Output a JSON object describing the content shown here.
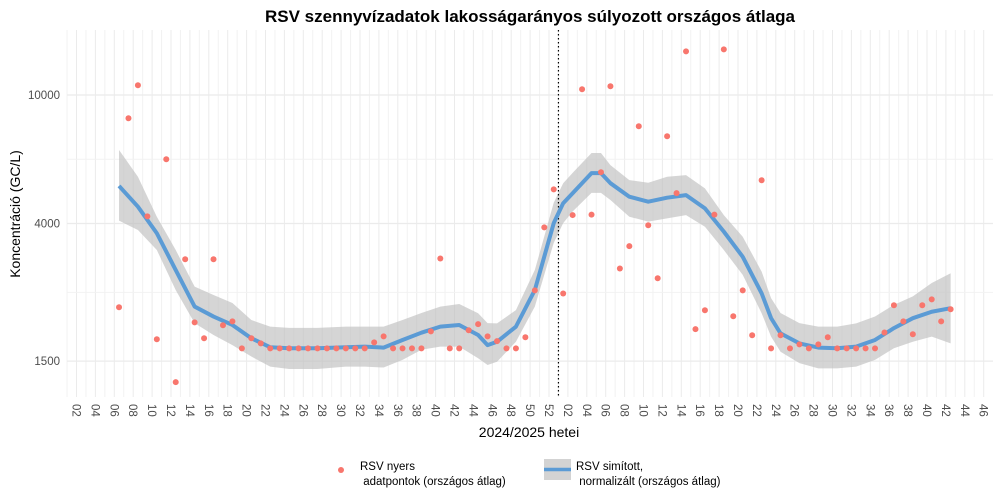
{
  "chart_data": {
    "type": "scatter",
    "title": "RSV szennyvízadatok lakosságarányos súlyozott országos átlaga",
    "xlabel": "2024/2025 hetei",
    "ylabel": "Koncentráció (GC/L)",
    "y_scale": "log",
    "y_ticks": [
      1500,
      4000,
      10000
    ],
    "ylim": [
      1160,
      15900
    ],
    "xlim": [
      "2024-W01",
      "2025-W47"
    ],
    "x_tick_labels_2024": [
      "02",
      "04",
      "06",
      "08",
      "10",
      "12",
      "14",
      "16",
      "18",
      "20",
      "22",
      "24",
      "26",
      "28",
      "30",
      "32",
      "34",
      "36",
      "38",
      "40",
      "42",
      "44",
      "46",
      "48",
      "50",
      "52"
    ],
    "x_tick_labels_2025": [
      "02",
      "04",
      "06",
      "08",
      "10",
      "12",
      "14",
      "16",
      "18",
      "20",
      "22",
      "24",
      "26",
      "28",
      "30",
      "32",
      "34",
      "36",
      "38",
      "40",
      "42",
      "44",
      "46"
    ],
    "vline_at": "2025-W01",
    "grid": true,
    "legend_position": "bottom",
    "colors": {
      "points": "#F8766D",
      "smooth": "#5B9BD5",
      "band": "#BEBEBE"
    },
    "legend": [
      {
        "label_line1": "RSV nyers",
        "label_line2": " adatpontok (országos átlag)"
      },
      {
        "label_line1": "RSV simított,",
        "label_line2": " normalizált (országos átlag)"
      }
    ],
    "points": [
      [
        "2024-W06",
        2203
      ],
      [
        "2024-W07",
        8470
      ],
      [
        "2024-W08",
        10720
      ],
      [
        "2024-W09",
        4210
      ],
      [
        "2024-W10",
        1753
      ],
      [
        "2024-W11",
        6325
      ],
      [
        "2024-W12",
        1291
      ],
      [
        "2024-W13",
        3100
      ],
      [
        "2024-W14",
        1977
      ],
      [
        "2024-W15",
        1766
      ],
      [
        "2024-W16",
        3100
      ],
      [
        "2024-W17",
        1937
      ],
      [
        "2024-W18",
        1992
      ],
      [
        "2024-W19",
        1643
      ],
      [
        "2024-W20",
        1766
      ],
      [
        "2024-W21",
        1703
      ],
      [
        "2024-W22",
        1643
      ],
      [
        "2024-W23",
        1643
      ],
      [
        "2024-W24",
        1643
      ],
      [
        "2024-W25",
        1643
      ],
      [
        "2024-W26",
        1643
      ],
      [
        "2024-W27",
        1643
      ],
      [
        "2024-W28",
        1643
      ],
      [
        "2024-W29",
        1643
      ],
      [
        "2024-W30",
        1643
      ],
      [
        "2024-W31",
        1643
      ],
      [
        "2024-W32",
        1643
      ],
      [
        "2024-W33",
        1715
      ],
      [
        "2024-W34",
        1790
      ],
      [
        "2024-W35",
        1643
      ],
      [
        "2024-W36",
        1643
      ],
      [
        "2024-W37",
        1643
      ],
      [
        "2024-W38",
        1643
      ],
      [
        "2024-W39",
        1855
      ],
      [
        "2024-W40",
        3118
      ],
      [
        "2024-W41",
        1643
      ],
      [
        "2024-W42",
        1643
      ],
      [
        "2024-W43",
        1870
      ],
      [
        "2024-W44",
        1953
      ],
      [
        "2024-W45",
        1790
      ],
      [
        "2024-W46",
        1730
      ],
      [
        "2024-W47",
        1643
      ],
      [
        "2024-W48",
        1643
      ],
      [
        "2024-W49",
        1778
      ],
      [
        "2024-W50",
        2484
      ],
      [
        "2024-W51",
        3891
      ],
      [
        "2024-W52",
        5105
      ],
      [
        "2025-W01",
        2430
      ],
      [
        "2025-W02",
        4249
      ],
      [
        "2025-W03",
        10420
      ],
      [
        "2025-W04",
        4262
      ],
      [
        "2025-W05",
        5768
      ],
      [
        "2025-W06",
        10640
      ],
      [
        "2025-W07",
        2904
      ],
      [
        "2025-W08",
        3404
      ],
      [
        "2025-W09",
        8000
      ],
      [
        "2025-W10",
        3953
      ],
      [
        "2025-W11",
        2707
      ],
      [
        "2025-W12",
        7450
      ],
      [
        "2025-W13",
        4968
      ],
      [
        "2025-W14",
        13650
      ],
      [
        "2025-W15",
        1884
      ],
      [
        "2025-W16",
        2155
      ],
      [
        "2025-W17",
        4262
      ],
      [
        "2025-W18",
        13840
      ],
      [
        "2025-W19",
        2066
      ],
      [
        "2025-W20",
        2484
      ],
      [
        "2025-W21",
        1804
      ],
      [
        "2025-W22",
        5447
      ],
      [
        "2025-W23",
        1643
      ],
      [
        "2025-W24",
        1804
      ],
      [
        "2025-W25",
        1643
      ],
      [
        "2025-W26",
        1690
      ],
      [
        "2025-W27",
        1643
      ],
      [
        "2025-W28",
        1690
      ],
      [
        "2025-W29",
        1778
      ],
      [
        "2025-W30",
        1643
      ],
      [
        "2025-W31",
        1643
      ],
      [
        "2025-W32",
        1643
      ],
      [
        "2025-W33",
        1643
      ],
      [
        "2025-W34",
        1643
      ],
      [
        "2025-W35",
        1840
      ],
      [
        "2025-W36",
        2234
      ],
      [
        "2025-W37",
        1992
      ],
      [
        "2025-W38",
        1817
      ],
      [
        "2025-W39",
        2234
      ],
      [
        "2025-W40",
        2329
      ],
      [
        "2025-W41",
        1992
      ],
      [
        "2025-W42",
        2172
      ]
    ],
    "smooth": [
      [
        "2024-W06",
        5229,
        4083,
        6757
      ],
      [
        "2024-W08",
        4511,
        3819,
        5585
      ],
      [
        "2024-W10",
        3732,
        3311,
        4200
      ],
      [
        "2024-W12",
        2871,
        2489,
        3311
      ],
      [
        "2024-W14",
        2213,
        1967,
        2551
      ],
      [
        "2024-W16",
        2061,
        1807,
        2404
      ],
      [
        "2024-W18",
        1941,
        1681,
        2270
      ],
      [
        "2024-W20",
        1766,
        1550,
        2011
      ],
      [
        "2024-W22",
        1656,
        1442,
        1918
      ],
      [
        "2024-W24",
        1644,
        1418,
        1901
      ],
      [
        "2024-W27",
        1644,
        1418,
        1901
      ],
      [
        "2024-W30",
        1656,
        1442,
        1918
      ],
      [
        "2024-W32",
        1663,
        1442,
        1918
      ],
      [
        "2024-W34",
        1652,
        1433,
        1918
      ],
      [
        "2024-W36",
        1744,
        1513,
        2011
      ],
      [
        "2024-W38",
        1837,
        1626,
        2113
      ],
      [
        "2024-W40",
        1918,
        1663,
        2213
      ],
      [
        "2024-W42",
        1941,
        1663,
        2253
      ],
      [
        "2024-W44",
        1807,
        1531,
        2110
      ],
      [
        "2024-W45",
        1681,
        1459,
        1967
      ],
      [
        "2024-W46",
        1722,
        1493,
        1963
      ],
      [
        "2024-W48",
        1918,
        1722,
        2158
      ],
      [
        "2024-W50",
        2489,
        2213,
        2871
      ],
      [
        "2024-W52",
        4011,
        3484,
        4637
      ],
      [
        "2025-W01",
        4624,
        4011,
        5333
      ],
      [
        "2025-W02",
        4963,
        4357,
        5741
      ],
      [
        "2025-W04",
        5731,
        4977,
        6611
      ],
      [
        "2025-W05",
        5731,
        4977,
        6611
      ],
      [
        "2025-W06",
        5333,
        4732,
        6067
      ],
      [
        "2025-W08",
        4843,
        4200,
        5452
      ],
      [
        "2025-W10",
        4674,
        4054,
        5352
      ],
      [
        "2025-W12",
        4809,
        4151,
        5585
      ],
      [
        "2025-W14",
        4898,
        4247,
        5650
      ],
      [
        "2025-W16",
        4456,
        3908,
        5141
      ],
      [
        "2025-W18",
        3776,
        3311,
        4247
      ],
      [
        "2025-W20",
        3156,
        2773,
        3640
      ],
      [
        "2025-W22",
        2432,
        2110,
        2839
      ],
      [
        "2025-W23",
        2038,
        1786,
        2351
      ],
      [
        "2025-W24",
        1828,
        1603,
        2113
      ],
      [
        "2025-W26",
        1702,
        1479,
        1967
      ],
      [
        "2025-W28",
        1652,
        1425,
        1918
      ],
      [
        "2025-W30",
        1644,
        1425,
        1918
      ],
      [
        "2025-W32",
        1663,
        1442,
        1963
      ],
      [
        "2025-W34",
        1744,
        1513,
        2061
      ],
      [
        "2025-W36",
        1898,
        1644,
        2240
      ],
      [
        "2025-W38",
        2037,
        1722,
        2379
      ],
      [
        "2025-W40",
        2133,
        1786,
        2618
      ],
      [
        "2025-W42",
        2188,
        1702,
        2806
      ]
    ]
  }
}
